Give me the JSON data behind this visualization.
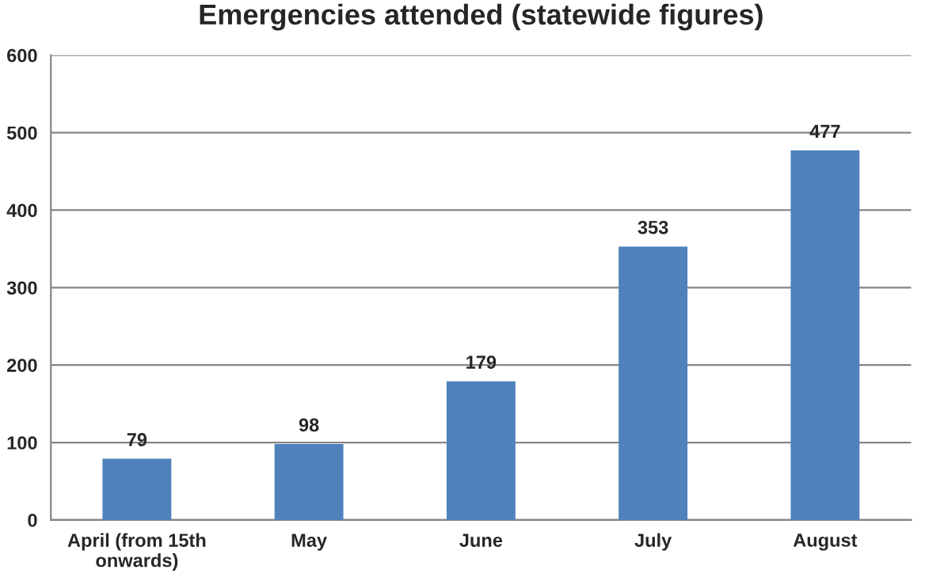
{
  "chart_data": {
    "type": "bar",
    "title": "Emergencies attended (statewide figures)",
    "categories": [
      "April (from 15th\nonwards)",
      "May",
      "June",
      "July",
      "August"
    ],
    "values": [
      79,
      98,
      179,
      353,
      477
    ],
    "color": "#4f81bd",
    "ylim": [
      0,
      600
    ],
    "yticks": [
      0,
      100,
      200,
      300,
      400,
      500,
      600
    ],
    "grid": "y",
    "data_labels": true
  }
}
